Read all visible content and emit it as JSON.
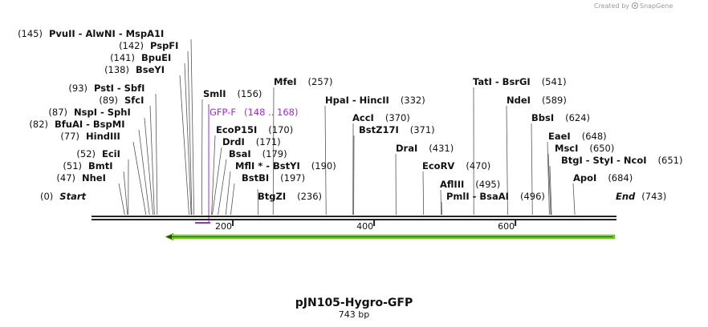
{
  "map": {
    "name": "pJN105-Hygro-GFP",
    "length_label": "743 bp",
    "length_bp": 743,
    "start_label": "Start",
    "end_label": "End",
    "start_pos": "(0)",
    "end_pos": "(743)",
    "ticks": [
      "200",
      "400",
      "600"
    ]
  },
  "watermark": {
    "prefix": "Created by",
    "brand": "SnapGene"
  },
  "primer": {
    "name": "GFP-F",
    "range": "(148 .. 168)",
    "color": "#9b30c9"
  },
  "feature": {
    "color": "#7ed321",
    "direction": "reverse"
  },
  "sites": [
    {
      "enzymes": "PvuII  - AlwNI  - MspA1I",
      "pos": "(145)"
    },
    {
      "enzymes": "PspFI",
      "pos": "(142)"
    },
    {
      "enzymes": "BpuEI",
      "pos": "(141)"
    },
    {
      "enzymes": "BseYI",
      "pos": "(138)"
    },
    {
      "enzymes": "PstI  - SbfI",
      "pos": "(93)"
    },
    {
      "enzymes": "SfcI",
      "pos": "(89)"
    },
    {
      "enzymes": "NspI  - SphI",
      "pos": "(87)"
    },
    {
      "enzymes": "BfuAI  - BspMI",
      "pos": "(82)"
    },
    {
      "enzymes": "HindIII",
      "pos": "(77)"
    },
    {
      "enzymes": "EciI",
      "pos": "(52)"
    },
    {
      "enzymes": "BmtI",
      "pos": "(51)"
    },
    {
      "enzymes": "NheI",
      "pos": "(47)"
    },
    {
      "enzymes": "SmlI",
      "pos": "(156)"
    },
    {
      "enzymes": "EcoP15I",
      "pos": "(170)"
    },
    {
      "enzymes": "DrdI",
      "pos": "(171)"
    },
    {
      "enzymes": "BsaI",
      "pos": "(179)"
    },
    {
      "enzymes": "MflI * - BstYI",
      "pos": "(190)"
    },
    {
      "enzymes": "BstBI",
      "pos": "(197)"
    },
    {
      "enzymes": "BtgZI",
      "pos": "(236)"
    },
    {
      "enzymes": "MfeI",
      "pos": "(257)"
    },
    {
      "enzymes": "HpaI  - HincII",
      "pos": "(332)"
    },
    {
      "enzymes": "AccI",
      "pos": "(370)"
    },
    {
      "enzymes": "BstZ17I",
      "pos": "(371)"
    },
    {
      "enzymes": "DraI",
      "pos": "(431)"
    },
    {
      "enzymes": "EcoRV",
      "pos": "(470)"
    },
    {
      "enzymes": "AflIII",
      "pos": "(495)"
    },
    {
      "enzymes": "PmlI  - BsaAI",
      "pos": "(496)"
    },
    {
      "enzymes": "TatI  - BsrGI",
      "pos": "(541)"
    },
    {
      "enzymes": "NdeI",
      "pos": "(589)"
    },
    {
      "enzymes": "BbsI",
      "pos": "(624)"
    },
    {
      "enzymes": "EaeI",
      "pos": "(648)"
    },
    {
      "enzymes": "MscI",
      "pos": "(650)"
    },
    {
      "enzymes": "BtgI  - StyI  - NcoI",
      "pos": "(651)"
    },
    {
      "enzymes": "ApoI",
      "pos": "(684)"
    }
  ]
}
